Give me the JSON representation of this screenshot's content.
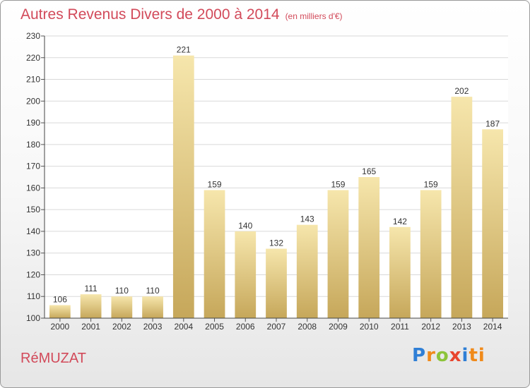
{
  "header": {
    "title": "Autres Revenus Divers de 2000 à 2014",
    "subtitle": "(en milliers d'€)"
  },
  "footer": {
    "commune": "RéMUZAT",
    "logo_letters": [
      "P",
      "r",
      "o",
      "x",
      "i",
      "ti"
    ]
  },
  "colors": {
    "title": "#d24a5a",
    "bar_light": "#f4e2a4",
    "bar_dark": "#c9ab5c",
    "grid": "#d9d9d9"
  },
  "chart_data": {
    "type": "bar",
    "title": "Autres Revenus Divers de 2000 à 2014",
    "subtitle": "(en milliers d'€)",
    "categories": [
      "2000",
      "2001",
      "2002",
      "2003",
      "2004",
      "2005",
      "2006",
      "2007",
      "2008",
      "2009",
      "2010",
      "2011",
      "2012",
      "2013",
      "2014"
    ],
    "values": [
      106,
      111,
      110,
      110,
      221,
      159,
      140,
      132,
      143,
      159,
      165,
      142,
      159,
      202,
      187
    ],
    "ylim": [
      100,
      230
    ],
    "yticks": [
      100,
      110,
      120,
      130,
      140,
      150,
      160,
      170,
      180,
      190,
      200,
      210,
      220,
      230
    ],
    "xlabel": "",
    "ylabel": "",
    "grid": true,
    "data_labels": true
  }
}
